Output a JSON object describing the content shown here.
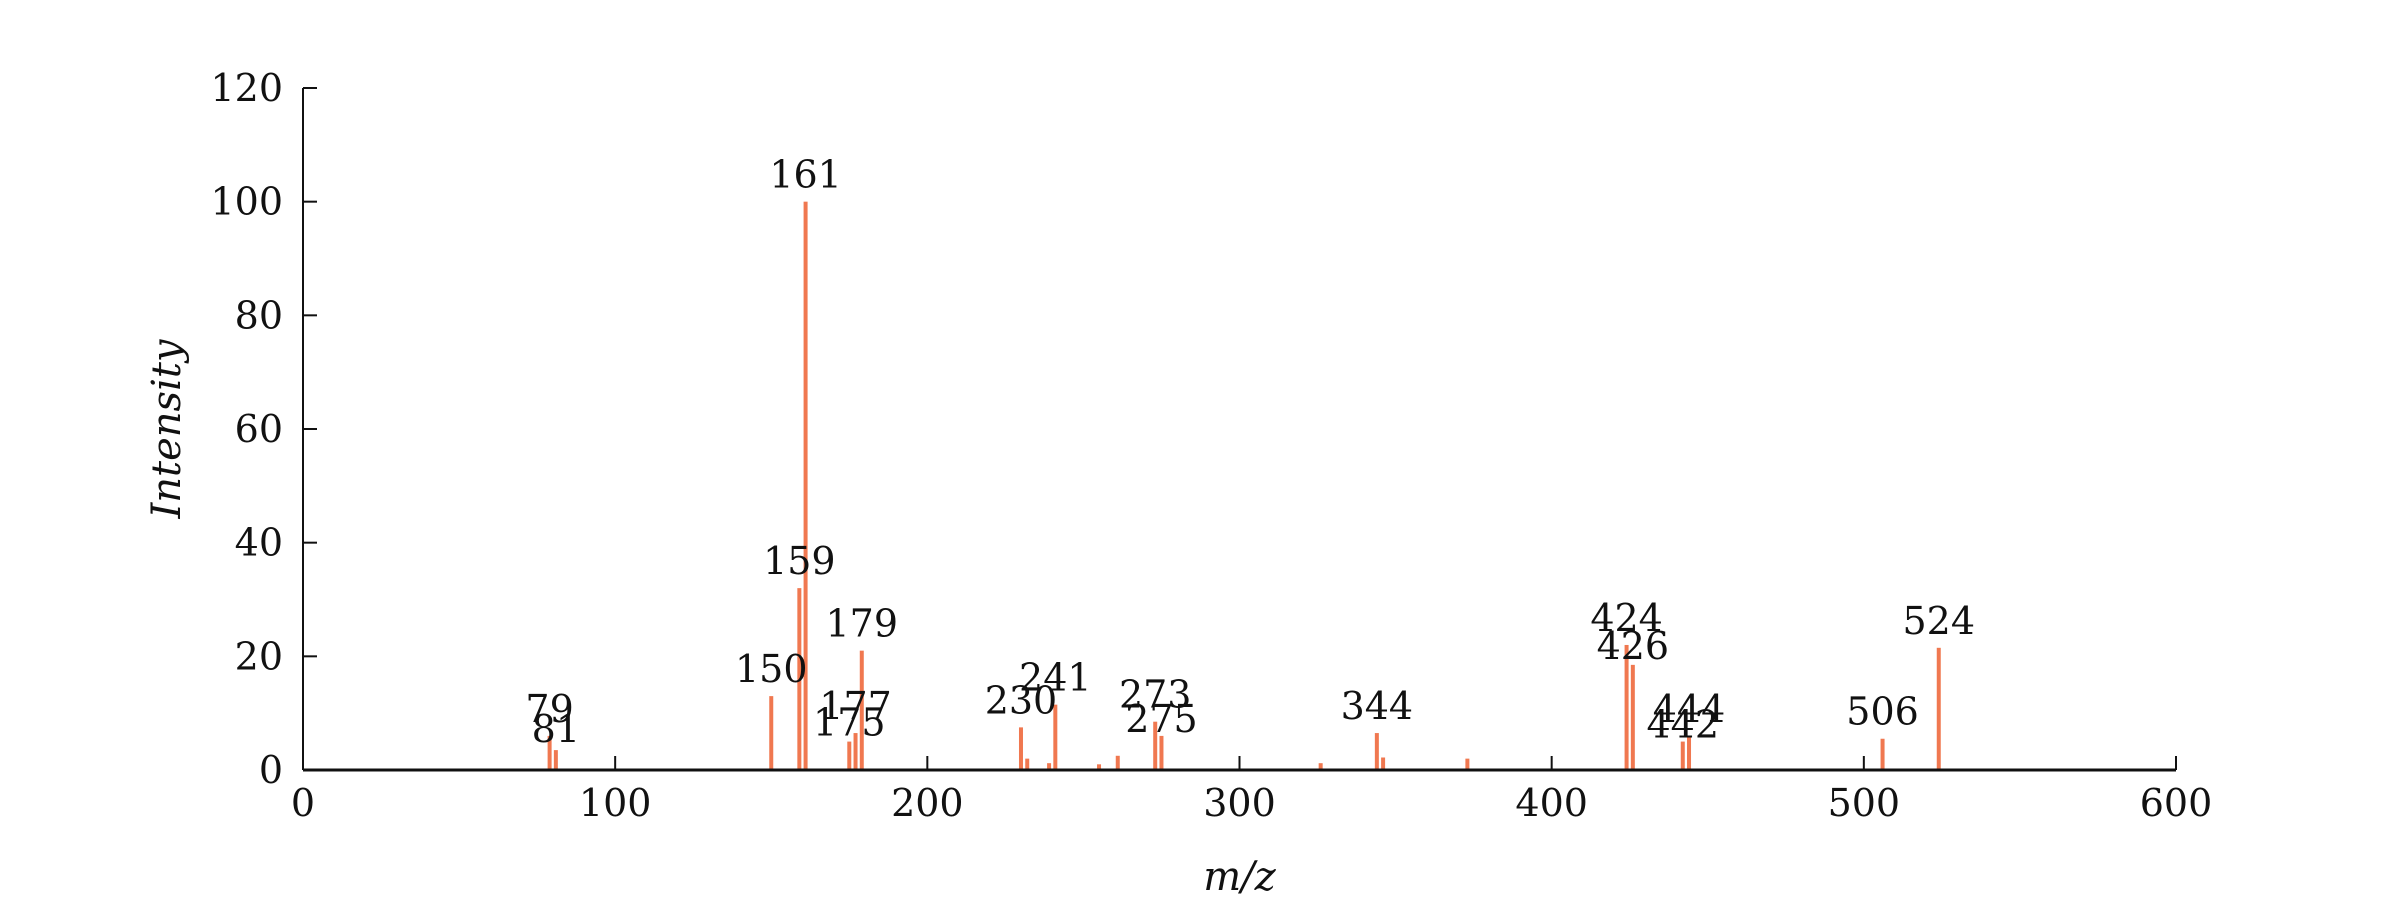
{
  "chart_data": {
    "type": "bar",
    "xlabel": "m/z",
    "ylabel": "Intensity",
    "xlim": [
      0,
      600
    ],
    "ylim": [
      0,
      120
    ],
    "x_ticks": [
      "0",
      "100",
      "200",
      "300",
      "400",
      "500",
      "600"
    ],
    "y_ticks": [
      "0",
      "20",
      "40",
      "60",
      "80",
      "100",
      "120"
    ],
    "grid": false,
    "bar_color": "#F07850",
    "peaks": [
      {
        "mz": 79,
        "intensity": 6,
        "label": "79"
      },
      {
        "mz": 81,
        "intensity": 3.5,
        "label": "81"
      },
      {
        "mz": 150,
        "intensity": 13,
        "label": "150"
      },
      {
        "mz": 159,
        "intensity": 32,
        "label": "159"
      },
      {
        "mz": 161,
        "intensity": 100,
        "label": "161"
      },
      {
        "mz": 175,
        "intensity": 5,
        "label": "175"
      },
      {
        "mz": 177,
        "intensity": 6.5,
        "label": "177"
      },
      {
        "mz": 179,
        "intensity": 21,
        "label": "179"
      },
      {
        "mz": 230,
        "intensity": 7.5,
        "label": "230"
      },
      {
        "mz": 232,
        "intensity": 2,
        "label": ""
      },
      {
        "mz": 239,
        "intensity": 1.2,
        "label": ""
      },
      {
        "mz": 241,
        "intensity": 11.5,
        "label": "241"
      },
      {
        "mz": 255,
        "intensity": 1,
        "label": ""
      },
      {
        "mz": 261,
        "intensity": 2.5,
        "label": ""
      },
      {
        "mz": 273,
        "intensity": 8.5,
        "label": "273"
      },
      {
        "mz": 275,
        "intensity": 6,
        "label": "275"
      },
      {
        "mz": 326,
        "intensity": 1.2,
        "label": ""
      },
      {
        "mz": 344,
        "intensity": 6.5,
        "label": "344"
      },
      {
        "mz": 346,
        "intensity": 2.2,
        "label": ""
      },
      {
        "mz": 373,
        "intensity": 2,
        "label": ""
      },
      {
        "mz": 424,
        "intensity": 22,
        "label": "424"
      },
      {
        "mz": 426,
        "intensity": 18.5,
        "label": "426"
      },
      {
        "mz": 442,
        "intensity": 5,
        "label": "442"
      },
      {
        "mz": 444,
        "intensity": 6,
        "label": "444"
      },
      {
        "mz": 506,
        "intensity": 5.5,
        "label": "506"
      },
      {
        "mz": 524,
        "intensity": 21.5,
        "label": "524"
      }
    ]
  }
}
